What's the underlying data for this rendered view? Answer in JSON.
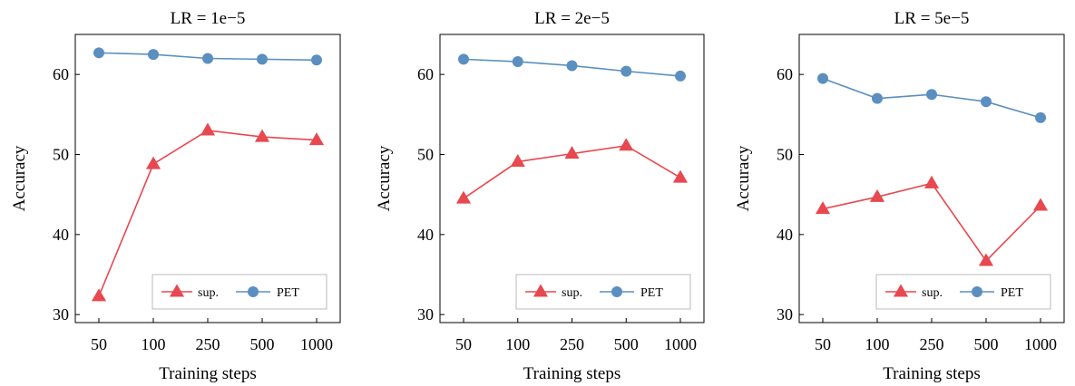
{
  "chart_data": [
    {
      "type": "line",
      "title": "LR = 1e−5",
      "xlabel": "Training steps",
      "ylabel": "Accuracy",
      "categories": [
        "50",
        "100",
        "250",
        "500",
        "1000"
      ],
      "ylim": [
        29,
        65
      ],
      "yticks": [
        30,
        40,
        50,
        60
      ],
      "legend_position": "bottom-right",
      "series": [
        {
          "name": "sup.",
          "color": "#e8484f",
          "marker": "triangle",
          "values": [
            32.3,
            48.8,
            53.0,
            52.2,
            51.8
          ]
        },
        {
          "name": "PET",
          "color": "#5a8fc0",
          "marker": "circle",
          "values": [
            62.7,
            62.5,
            62.0,
            61.9,
            61.8
          ]
        }
      ]
    },
    {
      "type": "line",
      "title": "LR = 2e−5",
      "xlabel": "Training steps",
      "ylabel": "Accuracy",
      "categories": [
        "50",
        "100",
        "250",
        "500",
        "1000"
      ],
      "ylim": [
        29,
        65
      ],
      "yticks": [
        30,
        40,
        50,
        60
      ],
      "legend_position": "bottom-right",
      "series": [
        {
          "name": "sup.",
          "color": "#e8484f",
          "marker": "triangle",
          "values": [
            44.5,
            49.1,
            50.1,
            51.1,
            47.1
          ]
        },
        {
          "name": "PET",
          "color": "#5a8fc0",
          "marker": "circle",
          "values": [
            61.9,
            61.6,
            61.1,
            60.4,
            59.8
          ]
        }
      ]
    },
    {
      "type": "line",
      "title": "LR = 5e−5",
      "xlabel": "Training steps",
      "ylabel": "Accuracy",
      "categories": [
        "50",
        "100",
        "250",
        "500",
        "1000"
      ],
      "ylim": [
        29,
        65
      ],
      "yticks": [
        30,
        40,
        50,
        60
      ],
      "legend_position": "bottom-right",
      "series": [
        {
          "name": "sup.",
          "color": "#e8484f",
          "marker": "triangle",
          "values": [
            43.2,
            44.7,
            46.4,
            36.7,
            43.6
          ]
        },
        {
          "name": "PET",
          "color": "#5a8fc0",
          "marker": "circle",
          "values": [
            59.5,
            57.0,
            57.5,
            56.6,
            54.6
          ]
        }
      ]
    }
  ]
}
